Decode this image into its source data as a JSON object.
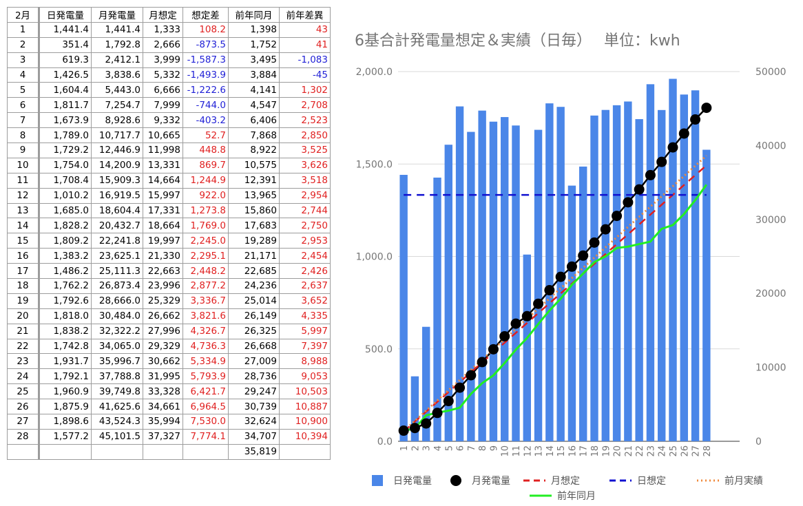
{
  "table": {
    "headers": [
      "2月",
      "日発電量",
      "月発電量",
      "月想定",
      "想定差",
      "前年同月",
      "前年差異"
    ],
    "rows": [
      {
        "day": "1",
        "daily": "1,441.4",
        "monthly": "1,441.4",
        "plan": "1,333",
        "diff": "108.2",
        "prev": "1,398",
        "prevdiff": "43"
      },
      {
        "day": "2",
        "daily": "351.4",
        "monthly": "1,792.8",
        "plan": "2,666",
        "diff": "-873.5",
        "prev": "1,752",
        "prevdiff": "41"
      },
      {
        "day": "3",
        "daily": "619.3",
        "monthly": "2,412.1",
        "plan": "3,999",
        "diff": "-1,587.3",
        "prev": "3,495",
        "prevdiff": "-1,083"
      },
      {
        "day": "4",
        "daily": "1,426.5",
        "monthly": "3,838.6",
        "plan": "5,332",
        "diff": "-1,493.9",
        "prev": "3,884",
        "prevdiff": "-45"
      },
      {
        "day": "5",
        "daily": "1,604.4",
        "monthly": "5,443.0",
        "plan": "6,666",
        "diff": "-1,222.6",
        "prev": "4,141",
        "prevdiff": "1,302"
      },
      {
        "day": "6",
        "daily": "1,811.7",
        "monthly": "7,254.7",
        "plan": "7,999",
        "diff": "-744.0",
        "prev": "4,547",
        "prevdiff": "2,708"
      },
      {
        "day": "7",
        "daily": "1,673.9",
        "monthly": "8,928.6",
        "plan": "9,332",
        "diff": "-403.2",
        "prev": "6,406",
        "prevdiff": "2,523"
      },
      {
        "day": "8",
        "daily": "1,789.0",
        "monthly": "10,717.7",
        "plan": "10,665",
        "diff": "52.7",
        "prev": "7,868",
        "prevdiff": "2,850"
      },
      {
        "day": "9",
        "daily": "1,729.2",
        "monthly": "12,446.9",
        "plan": "11,998",
        "diff": "448.8",
        "prev": "8,922",
        "prevdiff": "3,525"
      },
      {
        "day": "10",
        "daily": "1,754.0",
        "monthly": "14,200.9",
        "plan": "13,331",
        "diff": "869.7",
        "prev": "10,575",
        "prevdiff": "3,626"
      },
      {
        "day": "11",
        "daily": "1,708.4",
        "monthly": "15,909.3",
        "plan": "14,664",
        "diff": "1,244.9",
        "prev": "12,391",
        "prevdiff": "3,518"
      },
      {
        "day": "12",
        "daily": "1,010.2",
        "monthly": "16,919.5",
        "plan": "15,997",
        "diff": "922.0",
        "prev": "13,965",
        "prevdiff": "2,954"
      },
      {
        "day": "13",
        "daily": "1,685.0",
        "monthly": "18,604.4",
        "plan": "17,331",
        "diff": "1,273.8",
        "prev": "15,860",
        "prevdiff": "2,744"
      },
      {
        "day": "14",
        "daily": "1,828.2",
        "monthly": "20,432.7",
        "plan": "18,664",
        "diff": "1,769.0",
        "prev": "17,683",
        "prevdiff": "2,750"
      },
      {
        "day": "15",
        "daily": "1,809.2",
        "monthly": "22,241.8",
        "plan": "19,997",
        "diff": "2,245.0",
        "prev": "19,289",
        "prevdiff": "2,953"
      },
      {
        "day": "16",
        "daily": "1,383.2",
        "monthly": "23,625.1",
        "plan": "21,330",
        "diff": "2,295.1",
        "prev": "21,171",
        "prevdiff": "2,454"
      },
      {
        "day": "17",
        "daily": "1,486.2",
        "monthly": "25,111.3",
        "plan": "22,663",
        "diff": "2,448.2",
        "prev": "22,685",
        "prevdiff": "2,426"
      },
      {
        "day": "18",
        "daily": "1,762.2",
        "monthly": "26,873.4",
        "plan": "23,996",
        "diff": "2,877.2",
        "prev": "24,236",
        "prevdiff": "2,637"
      },
      {
        "day": "19",
        "daily": "1,792.6",
        "monthly": "28,666.0",
        "plan": "25,329",
        "diff": "3,336.7",
        "prev": "25,014",
        "prevdiff": "3,652"
      },
      {
        "day": "20",
        "daily": "1,818.0",
        "monthly": "30,484.0",
        "plan": "26,662",
        "diff": "3,821.6",
        "prev": "26,149",
        "prevdiff": "4,335"
      },
      {
        "day": "21",
        "daily": "1,838.2",
        "monthly": "32,322.2",
        "plan": "27,996",
        "diff": "4,326.7",
        "prev": "26,325",
        "prevdiff": "5,997"
      },
      {
        "day": "22",
        "daily": "1,742.8",
        "monthly": "34,065.0",
        "plan": "29,329",
        "diff": "4,736.3",
        "prev": "26,668",
        "prevdiff": "7,397"
      },
      {
        "day": "23",
        "daily": "1,931.7",
        "monthly": "35,996.7",
        "plan": "30,662",
        "diff": "5,334.9",
        "prev": "27,009",
        "prevdiff": "8,988"
      },
      {
        "day": "24",
        "daily": "1,792.1",
        "monthly": "37,788.8",
        "plan": "31,995",
        "diff": "5,793.9",
        "prev": "28,736",
        "prevdiff": "9,053"
      },
      {
        "day": "25",
        "daily": "1,960.9",
        "monthly": "39,749.8",
        "plan": "33,328",
        "diff": "6,421.7",
        "prev": "29,247",
        "prevdiff": "10,503"
      },
      {
        "day": "26",
        "daily": "1,875.9",
        "monthly": "41,625.6",
        "plan": "34,661",
        "diff": "6,964.5",
        "prev": "30,739",
        "prevdiff": "10,887"
      },
      {
        "day": "27",
        "daily": "1,898.6",
        "monthly": "43,524.3",
        "plan": "35,994",
        "diff": "7,530.0",
        "prev": "32,624",
        "prevdiff": "10,900"
      },
      {
        "day": "28",
        "daily": "1,577.2",
        "monthly": "45,101.5",
        "plan": "37,327",
        "diff": "7,774.1",
        "prev": "34,707",
        "prevdiff": "10,394"
      },
      {
        "day": "",
        "daily": "",
        "monthly": "",
        "plan": "",
        "diff": "",
        "prev": "35,819",
        "prevdiff": ""
      }
    ]
  },
  "chart_data": {
    "type": "bar",
    "title": "6基合計発電量想定＆実績（日毎）　 単位：kwh",
    "x": [
      1,
      2,
      3,
      4,
      5,
      6,
      7,
      8,
      9,
      10,
      11,
      12,
      13,
      14,
      15,
      16,
      17,
      18,
      19,
      20,
      21,
      22,
      23,
      24,
      25,
      26,
      27,
      28
    ],
    "y_left_ticks": [
      "0.0",
      "500.0",
      "1,000.0",
      "1,500.0",
      "2,000.0"
    ],
    "y_left_range": [
      0,
      2000
    ],
    "y_right_ticks": [
      "0",
      "10000",
      "20000",
      "30000",
      "40000",
      "50000"
    ],
    "y_right_range": [
      0,
      50000
    ],
    "series": [
      {
        "name": "日発電量",
        "type": "bar",
        "axis": "left",
        "color": "#4a86e8",
        "values": [
          1441.4,
          351.4,
          619.3,
          1426.5,
          1604.4,
          1811.7,
          1673.9,
          1789.0,
          1729.2,
          1754.0,
          1708.4,
          1010.2,
          1685.0,
          1828.2,
          1809.2,
          1383.2,
          1486.2,
          1762.2,
          1792.6,
          1818.0,
          1838.2,
          1742.8,
          1931.7,
          1792.1,
          1960.9,
          1875.9,
          1898.6,
          1577.2
        ]
      },
      {
        "name": "月発電量",
        "type": "line-markers",
        "axis": "right",
        "color": "#000000",
        "values": [
          1441.4,
          1792.8,
          2412.1,
          3838.6,
          5443.0,
          7254.7,
          8928.6,
          10717.7,
          12446.9,
          14200.9,
          15909.3,
          16919.5,
          18604.4,
          20432.7,
          22241.8,
          23625.1,
          25111.3,
          26873.4,
          28666.0,
          30484.0,
          32322.2,
          34065.0,
          35996.7,
          37788.8,
          39749.8,
          41625.6,
          43524.3,
          45101.5
        ]
      },
      {
        "name": "月想定",
        "type": "dashed",
        "axis": "right",
        "color": "#e02020",
        "values": [
          1333,
          2666,
          3999,
          5332,
          6666,
          7999,
          9332,
          10665,
          11998,
          13331,
          14664,
          15997,
          17331,
          18664,
          19997,
          21330,
          22663,
          23996,
          25329,
          26662,
          27996,
          29329,
          30662,
          31995,
          33328,
          34661,
          35994,
          37327
        ]
      },
      {
        "name": "日想定",
        "type": "dashed",
        "axis": "left",
        "color": "#1010d0",
        "values": [
          1333,
          1333,
          1333,
          1333,
          1333,
          1333,
          1333,
          1333,
          1333,
          1333,
          1333,
          1333,
          1333,
          1333,
          1333,
          1333,
          1333,
          1333,
          1333,
          1333,
          1333,
          1333,
          1333,
          1333,
          1333,
          1333,
          1333,
          1333
        ]
      },
      {
        "name": "前月実績",
        "type": "dotted",
        "axis": "right",
        "color": "#f08a3c",
        "values": [
          1380,
          2760,
          4140,
          5520,
          6900,
          8280,
          9660,
          11040,
          12420,
          13800,
          15180,
          16560,
          17940,
          19320,
          20700,
          22080,
          23460,
          24840,
          26220,
          27600,
          28980,
          30360,
          31740,
          33120,
          34500,
          35880,
          37260,
          38640
        ]
      },
      {
        "name": "前年同月",
        "type": "line",
        "axis": "right",
        "color": "#22ee22",
        "values": [
          1398,
          1752,
          3495,
          3884,
          4141,
          4547,
          6406,
          7868,
          8922,
          10575,
          12391,
          13965,
          15860,
          17683,
          19289,
          21171,
          22685,
          24236,
          25014,
          26149,
          26325,
          26668,
          27009,
          28736,
          29247,
          30739,
          32624,
          34707
        ]
      }
    ],
    "legend": [
      "日発電量",
      "月発電量",
      "月想定",
      "日想定",
      "前月実績",
      "前年同月"
    ],
    "legend_position": "bottom"
  }
}
